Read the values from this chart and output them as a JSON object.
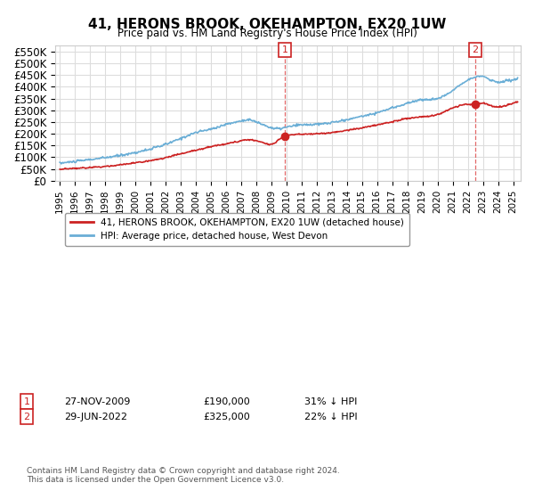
{
  "title": "41, HERONS BROOK, OKEHAMPTON, EX20 1UW",
  "subtitle": "Price paid vs. HM Land Registry's House Price Index (HPI)",
  "ylabel_ticks": [
    "£0",
    "£50K",
    "£100K",
    "£150K",
    "£200K",
    "£250K",
    "£300K",
    "£350K",
    "£400K",
    "£450K",
    "£500K",
    "£550K"
  ],
  "ytick_values": [
    0,
    50000,
    100000,
    150000,
    200000,
    250000,
    300000,
    350000,
    400000,
    450000,
    500000,
    550000
  ],
  "ylim": [
    0,
    575000
  ],
  "xlim_start": 1995.0,
  "xlim_end": 2025.5,
  "sale1_x": 2009.9,
  "sale1_y": 190000,
  "sale1_label": "1",
  "sale2_x": 2022.49,
  "sale2_y": 325000,
  "sale2_label": "2",
  "hpi_color": "#6aaed6",
  "price_color": "#cc2222",
  "vline_color": "#dd4444",
  "background_color": "#ffffff",
  "grid_color": "#dddddd",
  "legend_line1": "41, HERONS BROOK, OKEHAMPTON, EX20 1UW (detached house)",
  "legend_line2": "HPI: Average price, detached house, West Devon",
  "annotation1_date": "27-NOV-2009",
  "annotation1_price": "£190,000",
  "annotation1_hpi": "31% ↓ HPI",
  "annotation2_date": "29-JUN-2022",
  "annotation2_price": "£325,000",
  "annotation2_hpi": "22% ↓ HPI",
  "footnote": "Contains HM Land Registry data © Crown copyright and database right 2024.\nThis data is licensed under the Open Government Licence v3.0."
}
